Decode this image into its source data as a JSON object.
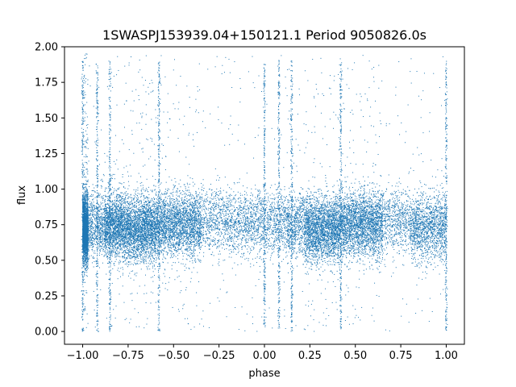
{
  "chart_data": {
    "type": "scatter",
    "title": "1SWASPJ153939.04+150121.1 Period 9050826.0s",
    "xlabel": "phase",
    "ylabel": "flux",
    "xlim": [
      -1.1,
      1.1
    ],
    "ylim": [
      -0.09,
      2.0
    ],
    "xticks": [
      -1.0,
      -0.75,
      -0.5,
      -0.25,
      0.0,
      0.25,
      0.5,
      0.75,
      1.0
    ],
    "xtick_labels": [
      "−1.00",
      "−0.75",
      "−0.50",
      "−0.25",
      "0.00",
      "0.25",
      "0.50",
      "0.75",
      "1.00"
    ],
    "yticks": [
      0.0,
      0.25,
      0.5,
      0.75,
      1.0,
      1.25,
      1.5,
      1.75,
      2.0
    ],
    "ytick_labels": [
      "0.00",
      "0.25",
      "0.50",
      "0.75",
      "1.00",
      "1.25",
      "1.50",
      "1.75",
      "2.00"
    ],
    "grid": false,
    "legend": "none",
    "marker_color": "#1f77b4",
    "density_profile": [
      {
        "phase_start": -1.0,
        "phase_end": -0.97,
        "density": "high",
        "flux_center": 0.72
      },
      {
        "phase_start": -0.97,
        "phase_end": -0.88,
        "density": "low",
        "flux_center": 0.75
      },
      {
        "phase_start": -0.88,
        "phase_end": -0.78,
        "density": "medium",
        "flux_center": 0.75
      },
      {
        "phase_start": -0.78,
        "phase_end": -0.6,
        "density": "high",
        "flux_center": 0.72
      },
      {
        "phase_start": -0.6,
        "phase_end": -0.35,
        "density": "high",
        "flux_center": 0.75
      },
      {
        "phase_start": -0.35,
        "phase_end": -0.2,
        "density": "low",
        "flux_center": 0.78
      },
      {
        "phase_start": -0.2,
        "phase_end": 0.12,
        "density": "medium",
        "flux_center": 0.76
      },
      {
        "phase_start": 0.12,
        "phase_end": 0.22,
        "density": "low",
        "flux_center": 0.75
      },
      {
        "phase_start": 0.22,
        "phase_end": 0.42,
        "density": "high",
        "flux_center": 0.72
      },
      {
        "phase_start": 0.42,
        "phase_end": 0.65,
        "density": "high",
        "flux_center": 0.75
      },
      {
        "phase_start": 0.65,
        "phase_end": 0.8,
        "density": "low",
        "flux_center": 0.78
      },
      {
        "phase_start": 0.8,
        "phase_end": 1.0,
        "density": "medium",
        "flux_center": 0.73
      }
    ],
    "dip_phases": [
      -1.0,
      -0.92,
      -0.85,
      -0.58,
      0.0,
      0.08,
      0.15,
      0.42,
      1.0
    ]
  }
}
